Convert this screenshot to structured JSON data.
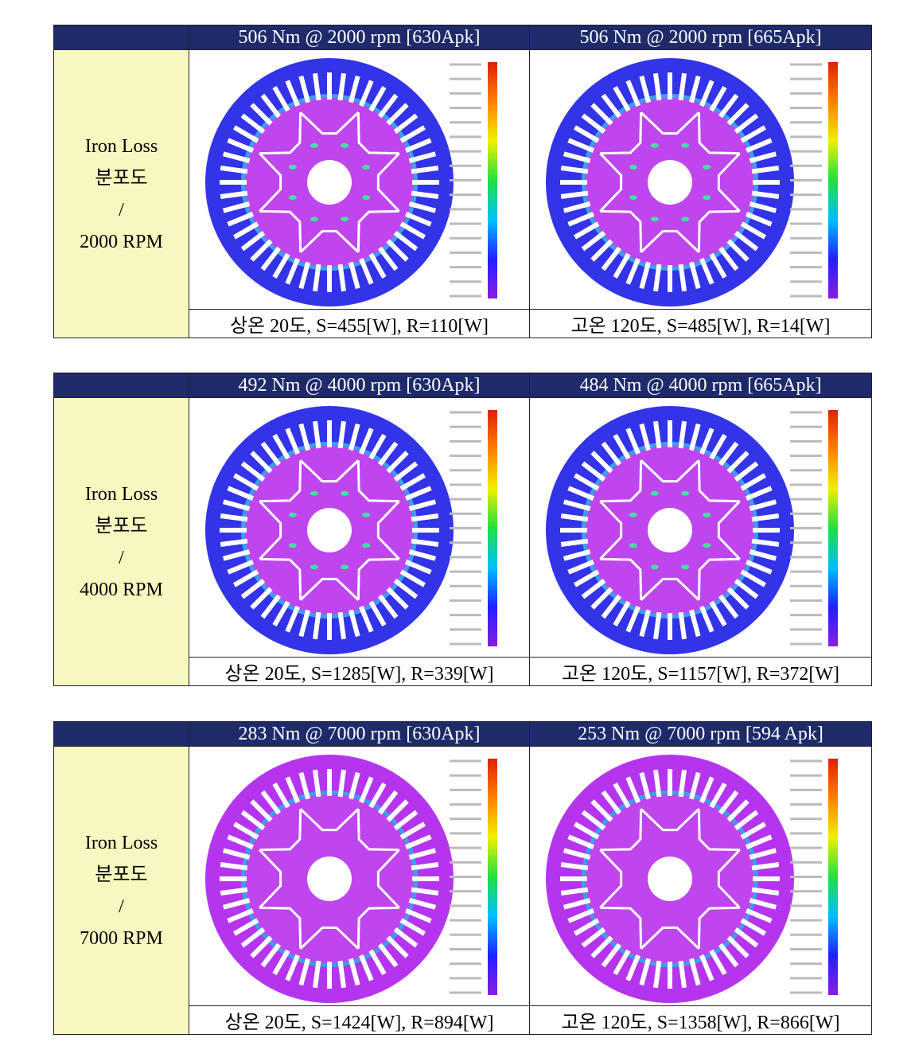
{
  "tables": [
    {
      "header": [
        "506 Nm @ 2000 rpm [630Apk]",
        "506 Nm @ 2000 rpm [665Apk]"
      ],
      "row_label": [
        "Iron Loss",
        "분포도",
        "/",
        "2000 RPM"
      ],
      "captions": [
        "상온 20도, S=455[W], R=110[W]",
        "고온 120도, S=485[W], R=14[W]"
      ]
    },
    {
      "header": [
        "492 Nm @ 4000 rpm [630Apk]",
        "484 Nm @ 4000 rpm [665Apk]"
      ],
      "row_label": [
        "Iron Loss",
        "분포도",
        "/",
        "4000 RPM"
      ],
      "captions": [
        "상온 20도, S=1285[W], R=339[W]",
        "고온 120도, S=1157[W], R=372[W]"
      ]
    },
    {
      "header": [
        "283 Nm @ 7000 rpm [630Apk]",
        "253 Nm @ 7000 rpm [594 Apk]"
      ],
      "row_label": [
        "Iron Loss",
        "분포도",
        "/",
        "7000 RPM"
      ],
      "captions": [
        "상온 20도, S=1424[W], R=894[W]",
        "고온 120도, S=1358[W], R=866[W]"
      ]
    }
  ]
}
